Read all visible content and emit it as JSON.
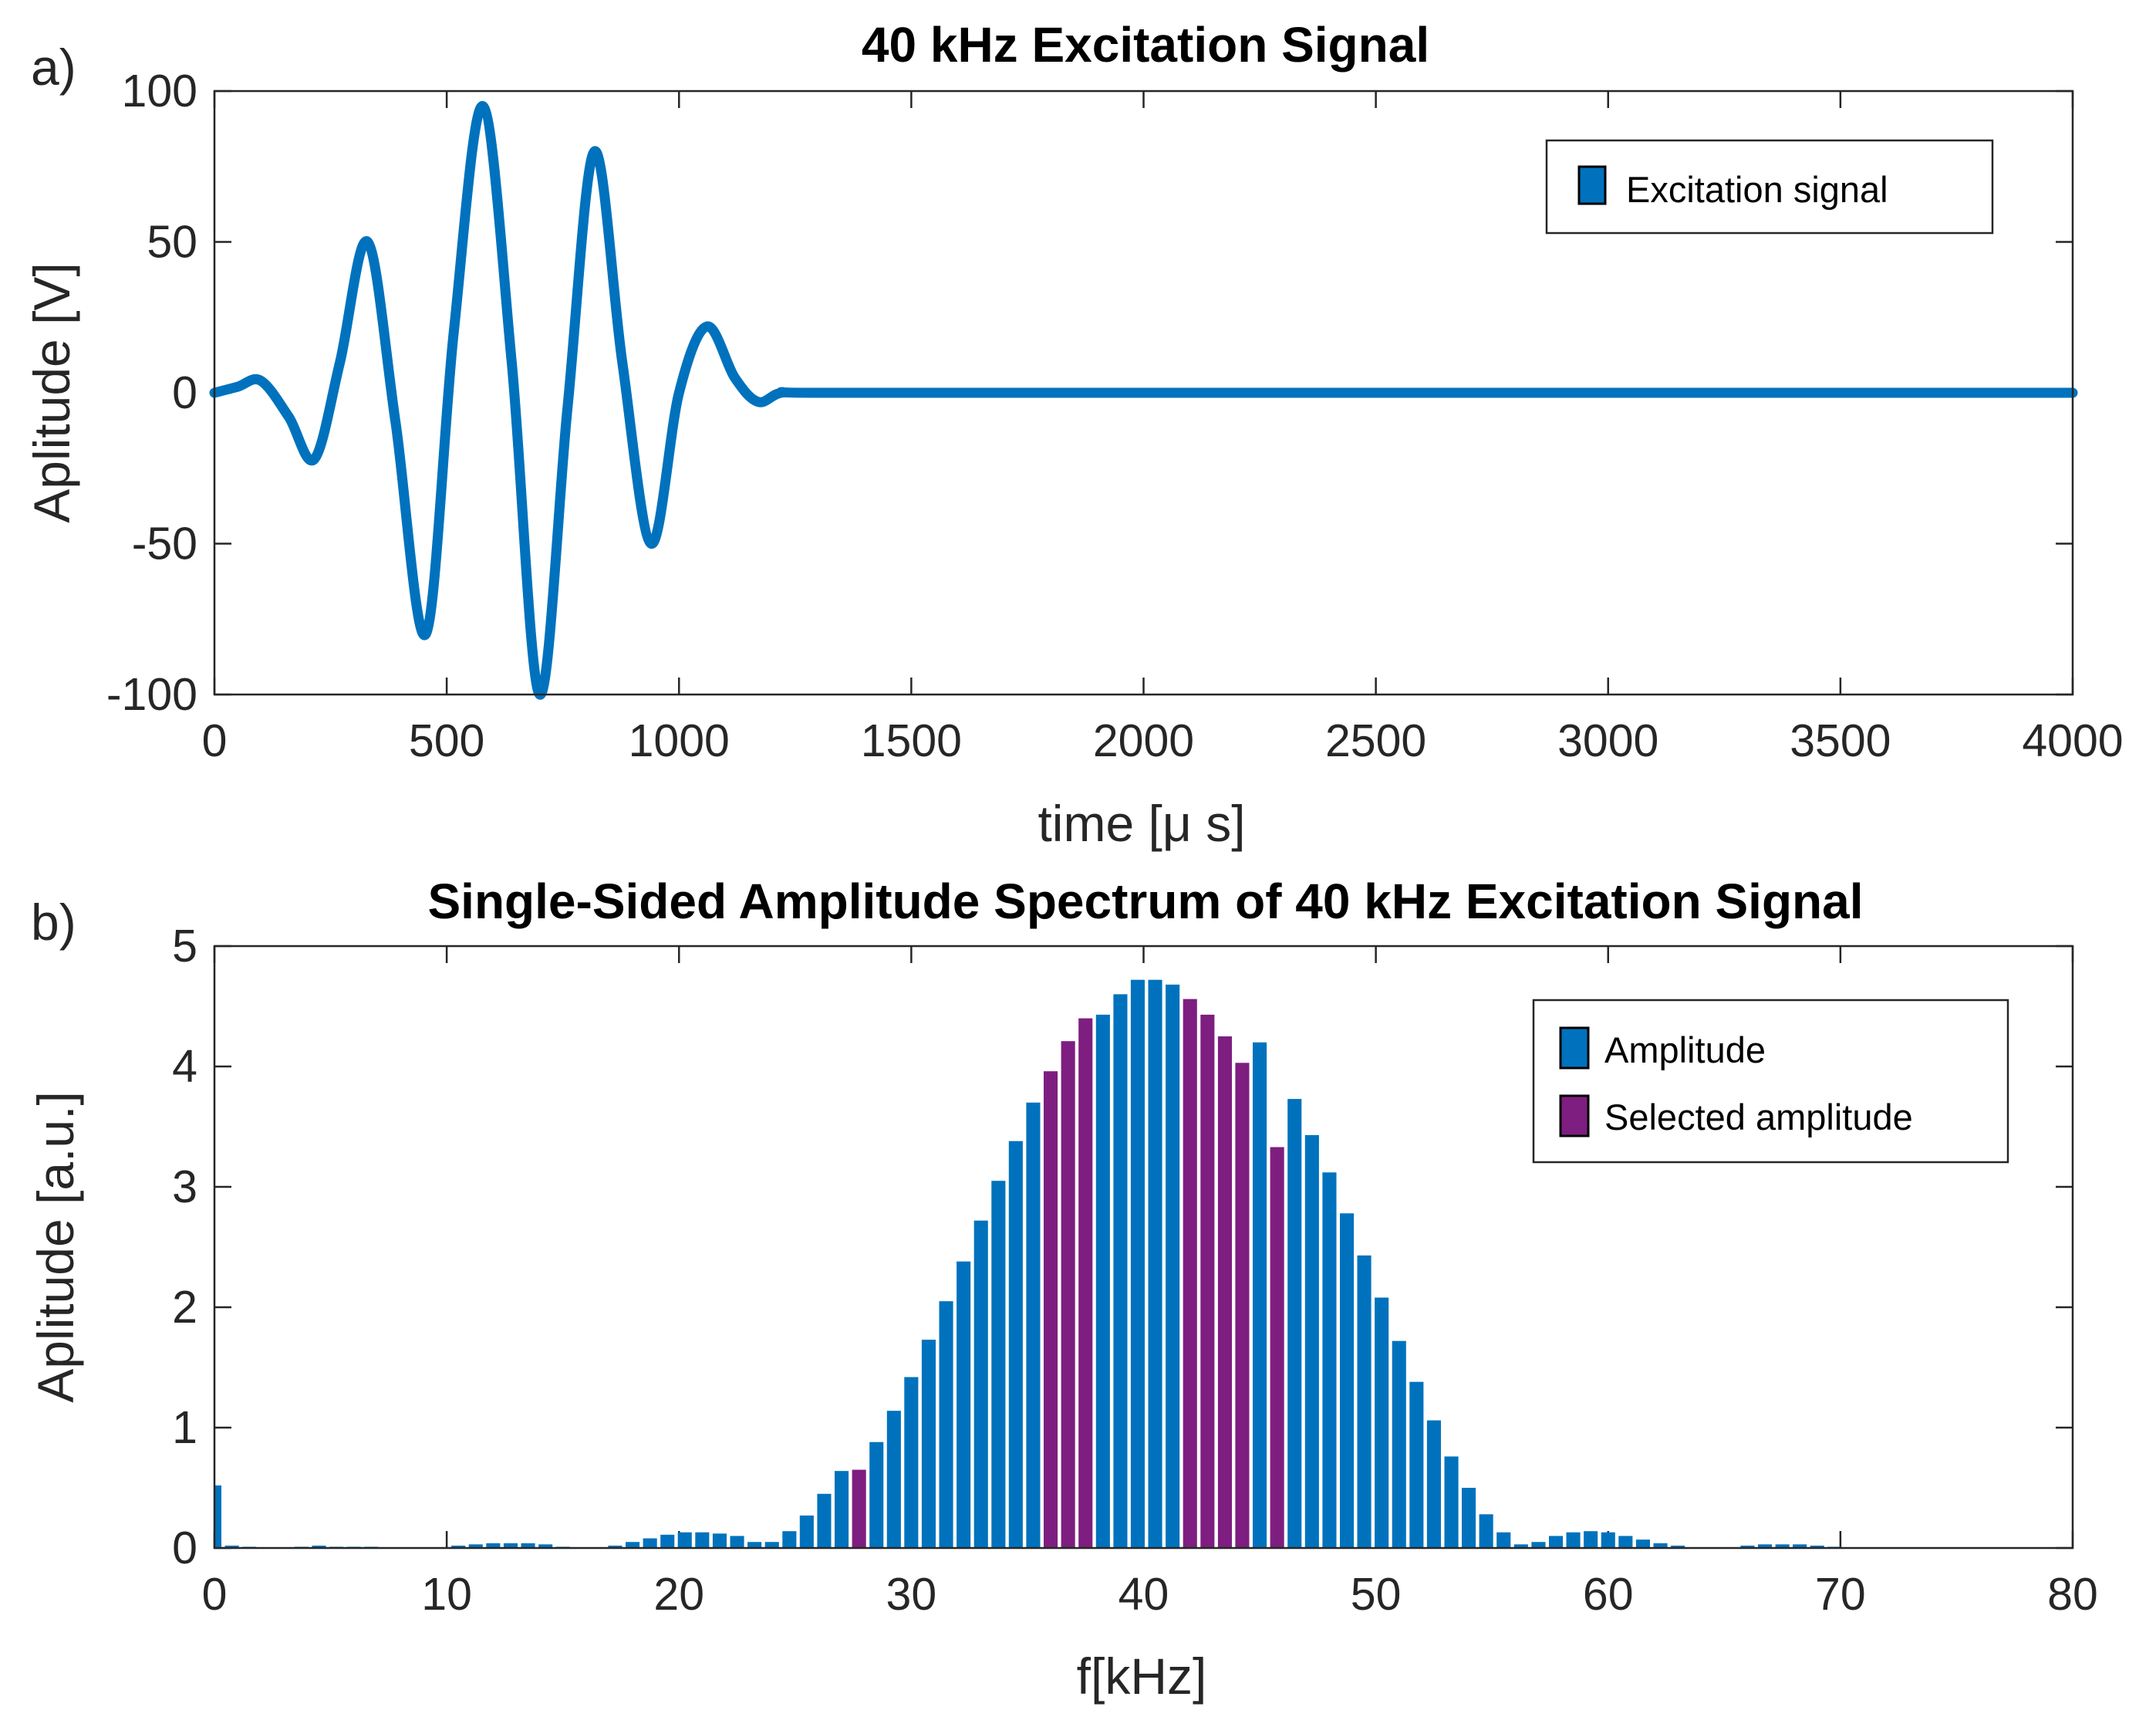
{
  "chart_data": [
    {
      "panel_label": "a)",
      "type": "line",
      "title": "40 kHz Excitation Signal",
      "xlabel": "time [μ s]",
      "ylabel": "Aplitude [V]",
      "xlim": [
        0,
        4000
      ],
      "ylim": [
        -100,
        100
      ],
      "xticks": [
        0,
        500,
        1000,
        1500,
        2000,
        2500,
        3000,
        3500,
        4000
      ],
      "yticks": [
        100,
        50,
        0,
        -50,
        -100
      ],
      "grid": false,
      "legend": {
        "position": "top-right",
        "entries": [
          "Excitation signal"
        ]
      },
      "series": [
        {
          "name": "Excitation signal",
          "color": "#0072BD",
          "x": [
            0,
            50,
            100,
            160,
            215,
            270,
            330,
            390,
            455,
            515,
            578,
            640,
            700,
            760,
            818,
            878,
            940,
            1000,
            1060,
            1120,
            1170,
            1220,
            1300,
            2000,
            3000,
            4000
          ],
          "y": [
            0,
            2,
            4,
            -8,
            -22,
            10,
            50,
            -10,
            -80,
            20,
            95,
            10,
            -100,
            -5,
            80,
            10,
            -50,
            0,
            22,
            5,
            -3,
            0,
            0,
            0,
            0,
            0
          ]
        }
      ]
    },
    {
      "panel_label": "b)",
      "type": "bar",
      "title": "Single-Sided Amplitude Spectrum of 40 kHz Excitation Signal",
      "xlabel": "f[kHz]",
      "ylabel": "Aplitude [a.u.]",
      "xlim": [
        0,
        80
      ],
      "ylim": [
        0,
        5
      ],
      "xticks": [
        0,
        10,
        20,
        30,
        40,
        50,
        60,
        70,
        80
      ],
      "yticks": [
        5,
        4,
        3,
        2,
        1,
        0
      ],
      "grid": false,
      "bin_width_khz": 0.75,
      "legend": {
        "position": "top-right",
        "entries": [
          "Amplitude",
          "Selected amplitude"
        ]
      },
      "colors": {
        "amplitude": "#0072BD",
        "selected": "#7E1E80"
      },
      "series": [
        {
          "name": "Amplitude",
          "x": [
            0,
            0.75,
            1.5,
            3.75,
            4.5,
            5.25,
            6,
            6.75,
            10.5,
            11.25,
            12,
            12.75,
            13.5,
            14.25,
            15,
            17.25,
            18,
            18.75,
            19.5,
            20.25,
            21,
            21.75,
            22.5,
            23.25,
            24,
            24.75,
            25.5,
            26.25,
            27,
            28.5,
            29.25,
            30,
            30.75,
            31.5,
            32.25,
            33,
            33.75,
            34.5,
            35.25,
            38.25,
            39,
            39.75,
            40.5,
            41.25,
            45,
            46.5,
            47.25,
            48,
            48.75,
            49.5,
            50.25,
            51,
            51.75,
            52.5,
            53.25,
            54,
            54.75,
            55.5,
            56.25,
            57,
            57.75,
            58.5,
            59.25,
            60,
            60.75,
            61.5,
            62.25,
            63,
            66,
            66.75,
            67.5,
            68.25,
            69,
            69.75
          ],
          "values": [
            0.52,
            0.02,
            0.01,
            0.01,
            0.02,
            0.01,
            0.01,
            0.01,
            0.02,
            0.03,
            0.04,
            0.04,
            0.04,
            0.03,
            0.01,
            0.02,
            0.05,
            0.08,
            0.11,
            0.13,
            0.13,
            0.12,
            0.1,
            0.05,
            0.05,
            0.14,
            0.27,
            0.45,
            0.64,
            0.88,
            1.14,
            1.42,
            1.73,
            2.05,
            2.38,
            2.72,
            3.05,
            3.38,
            3.7,
            4.43,
            4.6,
            4.72,
            4.72,
            4.68,
            4.2,
            3.73,
            3.43,
            3.12,
            2.78,
            2.43,
            2.08,
            1.72,
            1.38,
            1.06,
            0.76,
            0.5,
            0.28,
            0.13,
            0.03,
            0.05,
            0.1,
            0.13,
            0.14,
            0.13,
            0.1,
            0.07,
            0.04,
            0.02,
            0.02,
            0.03,
            0.03,
            0.03,
            0.02,
            0.01
          ]
        },
        {
          "name": "Selected amplitude",
          "x": [
            27.75,
            36,
            36.75,
            37.5,
            42,
            42.75,
            43.5,
            44.25,
            45.75
          ],
          "values": [
            0.65,
            3.96,
            4.21,
            4.4,
            4.56,
            4.43,
            4.25,
            4.03,
            3.33
          ]
        }
      ]
    }
  ]
}
